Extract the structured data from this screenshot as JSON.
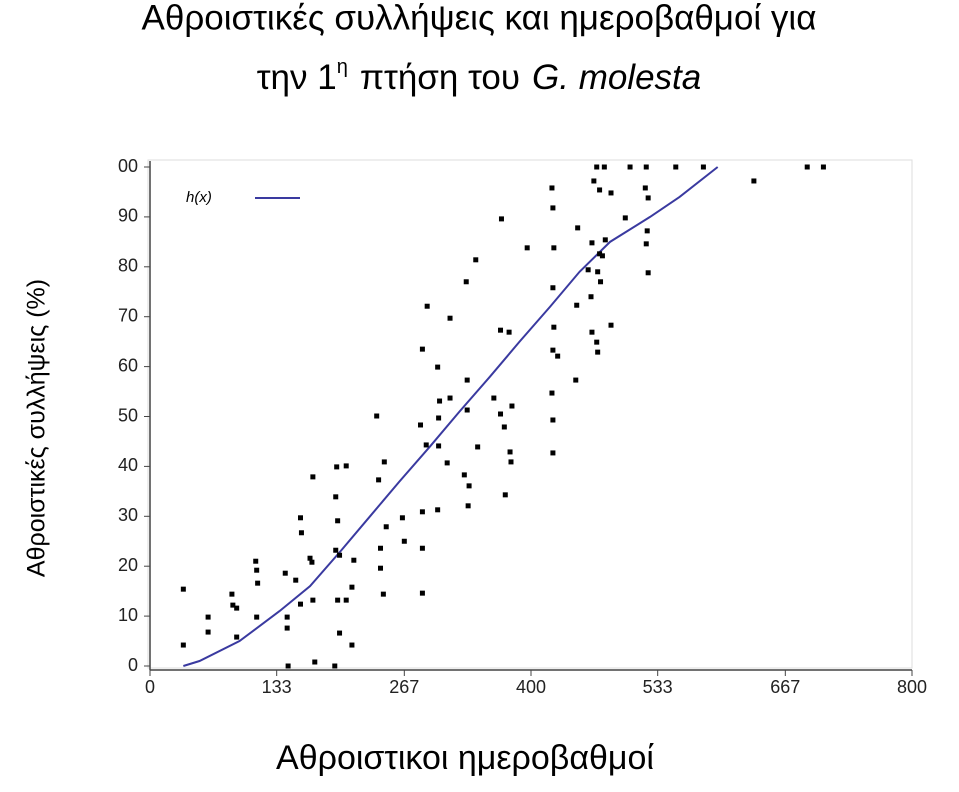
{
  "chart_data": {
    "type": "scatter",
    "title": [
      "Αθροιστικές συλλήψεις και ημεροβαθμοί για",
      "την 1",
      "η",
      "πτήση του",
      "G. molesta"
    ],
    "x_label": "Αθροιστικοι ημεροβαθμοί",
    "y_label": "Αθροιστικές συλλήψεις (%)",
    "xlim": [
      0,
      800
    ],
    "xticks": [
      0,
      133,
      267,
      400,
      533,
      667,
      800
    ],
    "ylim": [
      0,
      100
    ],
    "yticks": [
      0,
      10,
      20,
      30,
      40,
      50,
      60,
      70,
      80,
      90,
      {
        "value": 100,
        "label": "00"
      }
    ],
    "series": [
      {
        "name": "h(x)",
        "type": "line",
        "color": "#3a3aa0",
        "x": [
          35,
          52,
          94,
          136,
          168,
          200,
          231,
          262,
          294,
          325,
          357,
          388,
          420,
          451,
          483,
          525,
          556,
          596
        ],
        "y": [
          0,
          1,
          5,
          11,
          16,
          23,
          30,
          37,
          44,
          51,
          58,
          65,
          72,
          79,
          85,
          90,
          94,
          100
        ]
      },
      {
        "type": "scatter",
        "color": "#000000",
        "x": [
          35,
          35,
          61,
          61,
          86,
          87,
          91,
          91,
          111,
          112,
          113,
          112,
          142,
          144,
          144,
          145,
          158,
          159,
          153,
          158,
          171,
          168,
          170,
          171,
          173,
          196,
          195,
          197,
          195,
          199,
          197,
          206,
          199,
          212,
          194,
          206,
          214,
          212,
          238,
          240,
          246,
          248,
          242,
          242,
          245,
          265,
          267,
          286,
          291,
          284,
          290,
          286,
          286,
          286,
          302,
          304,
          303,
          303,
          302,
          315,
          315,
          312,
          332,
          333,
          333,
          330,
          335,
          334,
          342,
          344,
          361,
          369,
          368,
          377,
          368,
          380,
          372,
          378,
          379,
          373,
          396,
          422,
          423,
          424,
          423,
          424,
          423,
          428,
          422,
          423,
          423,
          449,
          448,
          447,
          469,
          477,
          466,
          472,
          484,
          464,
          478,
          472,
          460,
          470,
          463,
          473,
          475,
          464,
          484,
          469,
          470,
          504,
          521,
          520,
          523,
          499,
          522,
          521,
          523,
          552,
          581,
          634,
          690,
          707
        ],
        "y": [
          15.4,
          4.2,
          9.8,
          6.8,
          14.4,
          12.2,
          11.6,
          5.8,
          21,
          19.2,
          16.6,
          9.8,
          18.6,
          9.8,
          7.6,
          0,
          29.7,
          26.7,
          17.2,
          12.4,
          37.9,
          21.6,
          20.8,
          13.2,
          0.8,
          39.9,
          33.9,
          29.1,
          23.2,
          22.2,
          13.2,
          13.2,
          6.6,
          4.2,
          0,
          40.1,
          21.2,
          15.8,
          50.1,
          37.3,
          40.9,
          27.9,
          23.6,
          19.6,
          14.4,
          29.7,
          25,
          63.5,
          72.1,
          48.3,
          44.3,
          30.9,
          23.6,
          14.6,
          59.9,
          53.1,
          49.7,
          44.1,
          31.3,
          69.7,
          53.7,
          40.7,
          77,
          57.3,
          51.3,
          38.3,
          36.1,
          32.1,
          81.4,
          43.9,
          53.7,
          89.6,
          67.3,
          66.9,
          50.5,
          52.1,
          47.9,
          42.9,
          40.9,
          34.3,
          83.8,
          95.8,
          91.8,
          83.8,
          75.8,
          67.9,
          63.3,
          62.1,
          54.7,
          49.3,
          42.7,
          87.8,
          72.3,
          57.3,
          100,
          100,
          97.2,
          95.4,
          94.8,
          84.8,
          85.4,
          82.6,
          79.4,
          79,
          74,
          77,
          82.2,
          66.9,
          68.3,
          64.9,
          62.9,
          100,
          100,
          95.8,
          93.8,
          89.8,
          87.2,
          84.6,
          78.8,
          100,
          100,
          97.2,
          100,
          100
        ]
      }
    ]
  }
}
